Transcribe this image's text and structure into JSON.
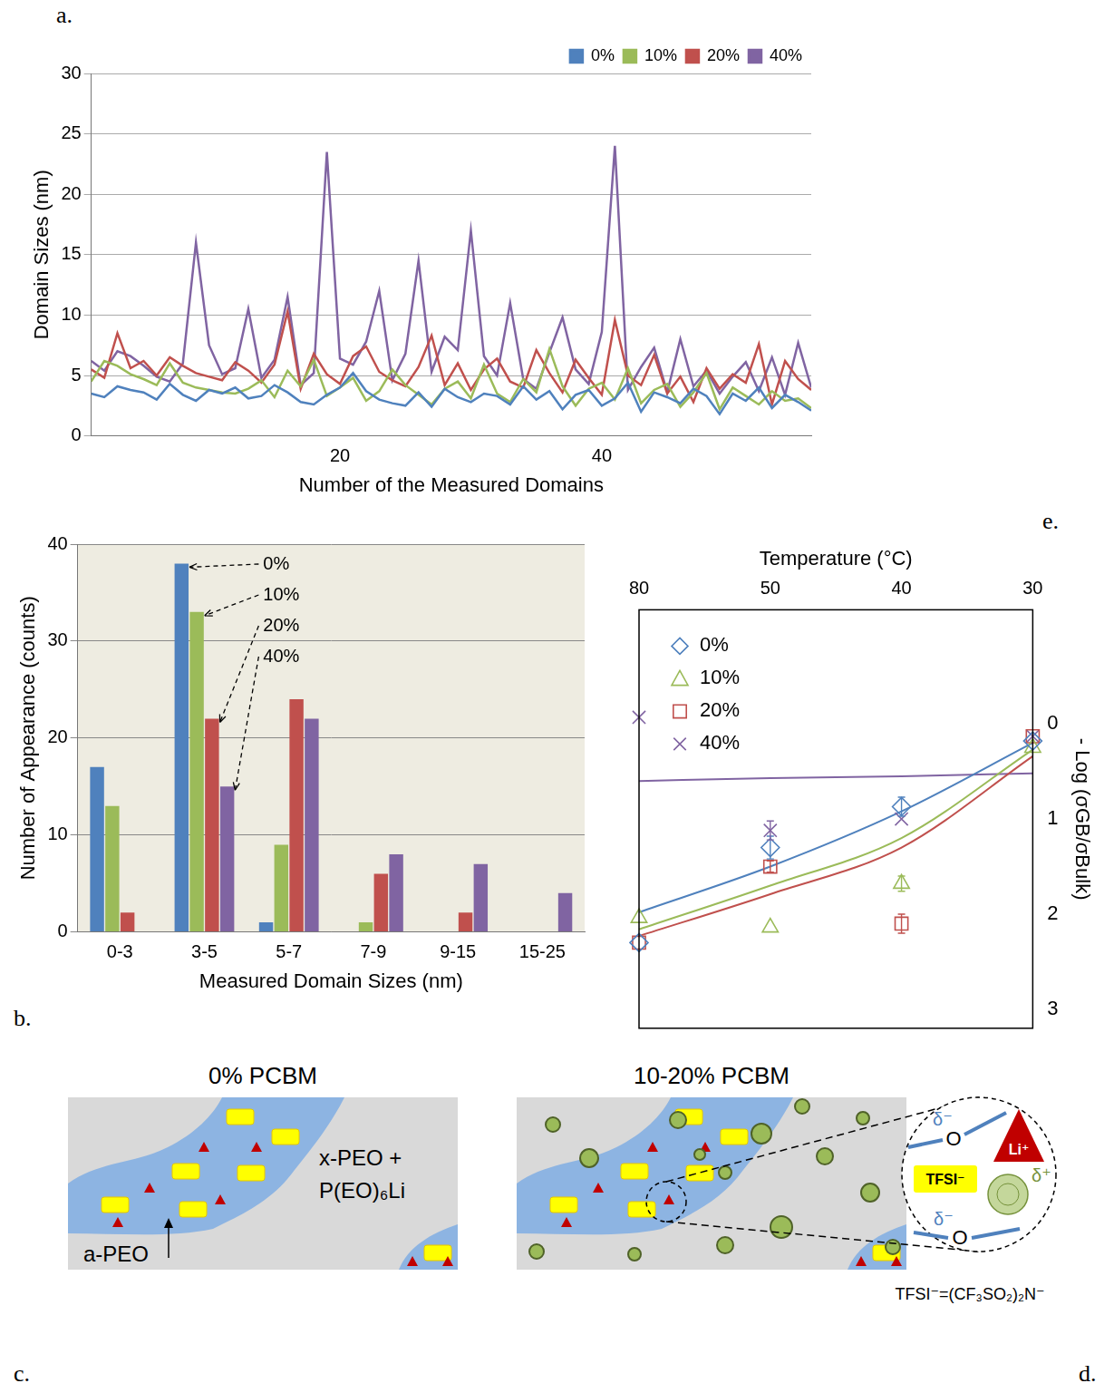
{
  "chart_data": [
    {
      "panel": "a.",
      "type": "line",
      "x_label": "Number of the Measured Domains",
      "y_label": "Domain Sizes (nm)",
      "x": [
        1,
        2,
        3,
        4,
        5,
        6,
        7,
        8,
        9,
        10,
        11,
        12,
        13,
        14,
        15,
        16,
        17,
        18,
        19,
        20,
        21,
        22,
        23,
        24,
        25,
        26,
        27,
        28,
        29,
        30,
        31,
        32,
        33,
        34,
        35,
        36,
        37,
        38,
        39,
        40,
        41,
        42,
        43,
        44,
        45,
        46,
        47,
        48,
        49,
        50,
        51,
        52,
        53,
        54,
        55,
        56
      ],
      "xlim": [
        1,
        56
      ],
      "xticks": [
        20,
        40
      ],
      "ylim": [
        0,
        30
      ],
      "yticks": [
        0,
        5,
        10,
        15,
        20,
        25,
        30
      ],
      "grid": true,
      "legend": "upper right",
      "series": [
        {
          "name": "0%",
          "color": "#4f81bd",
          "values": [
            3.5,
            3.2,
            4.1,
            3.8,
            3.6,
            3.0,
            4.3,
            3.4,
            2.9,
            3.8,
            3.5,
            4.0,
            3.1,
            3.3,
            4.2,
            3.6,
            2.8,
            2.6,
            3.4,
            4.0,
            5.2,
            3.7,
            3.0,
            2.7,
            2.5,
            3.6,
            2.4,
            3.9,
            3.2,
            2.8,
            3.5,
            3.3,
            2.6,
            4.1,
            3.0,
            3.7,
            2.2,
            3.4,
            3.8,
            2.5,
            3.1,
            4.4,
            2.0,
            3.6,
            3.2,
            2.7,
            3.9,
            3.3,
            1.8,
            3.5,
            2.9,
            4.0,
            2.3,
            3.4,
            2.8,
            2.1
          ]
        },
        {
          "name": "10%",
          "color": "#9bbb59",
          "values": [
            4.5,
            6.2,
            5.8,
            5.1,
            4.7,
            4.2,
            6.0,
            4.4,
            4.0,
            3.8,
            3.6,
            3.5,
            3.9,
            4.6,
            3.2,
            5.4,
            4.1,
            6.3,
            3.3,
            4.0,
            4.8,
            2.9,
            3.7,
            5.5,
            4.2,
            3.4,
            2.6,
            3.9,
            4.5,
            3.1,
            5.9,
            3.5,
            2.8,
            4.7,
            3.6,
            7.2,
            4.1,
            2.5,
            3.9,
            4.4,
            3.0,
            5.6,
            2.7,
            3.8,
            4.3,
            2.4,
            3.6,
            5.2,
            2.2,
            4.0,
            3.3,
            2.6,
            3.7,
            2.9,
            3.1,
            2.3
          ]
        },
        {
          "name": "20%",
          "color": "#c0504d",
          "values": [
            5.5,
            4.8,
            8.5,
            5.6,
            6.2,
            5.0,
            6.5,
            5.8,
            5.2,
            4.9,
            4.6,
            6.1,
            5.4,
            4.4,
            5.9,
            10.3,
            3.9,
            6.8,
            5.1,
            4.3,
            6.6,
            7.4,
            5.3,
            4.6,
            4.1,
            5.7,
            8.3,
            4.2,
            6.0,
            3.8,
            5.5,
            6.4,
            4.5,
            4.0,
            7.1,
            5.2,
            3.6,
            6.3,
            4.8,
            3.4,
            9.6,
            5.0,
            4.2,
            6.7,
            3.5,
            4.9,
            2.8,
            5.6,
            3.9,
            5.1,
            4.4,
            7.6,
            2.6,
            6.2,
            4.7,
            3.8
          ]
        },
        {
          "name": "40%",
          "color": "#8064a2",
          "values": [
            6.2,
            5.4,
            7.0,
            6.6,
            5.8,
            4.9,
            4.5,
            6.0,
            16.0,
            7.5,
            5.1,
            5.6,
            10.5,
            4.8,
            6.3,
            11.5,
            4.2,
            5.2,
            23.5,
            6.4,
            5.9,
            7.8,
            12.0,
            4.6,
            6.8,
            14.5,
            5.3,
            8.2,
            7.1,
            17.0,
            6.6,
            5.0,
            11.0,
            4.7,
            3.9,
            6.9,
            9.8,
            5.5,
            4.3,
            8.6,
            24.0,
            3.8,
            5.7,
            7.3,
            3.6,
            8.0,
            4.1,
            5.4,
            3.5,
            4.9,
            6.1,
            3.7,
            6.5,
            3.4,
            7.7,
            4.0
          ]
        }
      ]
    },
    {
      "panel": "b.",
      "type": "bar",
      "x_label": "Measured Domain Sizes (nm)",
      "y_label": "Number of Appearance (counts)",
      "categories": [
        "0-3",
        "3-5",
        "5-7",
        "7-9",
        "9-15",
        "15-25"
      ],
      "ylim": [
        0,
        40
      ],
      "yticks": [
        0,
        10,
        20,
        30,
        40
      ],
      "grid": true,
      "series": [
        {
          "name": "0%",
          "color": "#4f81bd",
          "values": [
            17,
            38,
            1,
            0,
            0,
            0
          ]
        },
        {
          "name": "10%",
          "color": "#9bbb59",
          "values": [
            13,
            33,
            9,
            1,
            0,
            0
          ]
        },
        {
          "name": "20%",
          "color": "#c0504d",
          "values": [
            2,
            22,
            24,
            6,
            2,
            0
          ]
        },
        {
          "name": "40%",
          "color": "#8064a2",
          "values": [
            0,
            15,
            22,
            8,
            7,
            4
          ]
        }
      ],
      "annotations": [
        {
          "text": "0%",
          "category": "3-5"
        },
        {
          "text": "10%",
          "category": "3-5"
        },
        {
          "text": "20%",
          "category": "3-5"
        },
        {
          "text": "40%",
          "category": "3-5"
        }
      ]
    },
    {
      "panel": "e.",
      "type": "scatter",
      "x_label": "Temperature (°C)",
      "y_label": "- Log (σGB/σBulk)",
      "categories": [
        "80",
        "50",
        "40",
        "30"
      ],
      "ylim": [
        -1.2,
        3.2
      ],
      "yticks": [
        0,
        1,
        2,
        3
      ],
      "legend": "upper left",
      "series": [
        {
          "name": "0%",
          "color": "#4f81bd",
          "marker": "diamond",
          "values": [
            2.3,
            1.3,
            0.87,
            0.18
          ],
          "errors": [
            null,
            0.12,
            0.1,
            null
          ],
          "fit": [
            1.98,
            1.5,
            0.92,
            0.2
          ]
        },
        {
          "name": "10%",
          "color": "#9bbb59",
          "marker": "triangle",
          "values": [
            2.04,
            2.14,
            1.68,
            0.25
          ],
          "errors": [
            null,
            null,
            0.08,
            null
          ],
          "fit": [
            2.16,
            1.7,
            1.2,
            0.27
          ]
        },
        {
          "name": "20%",
          "color": "#c0504d",
          "marker": "square",
          "values": [
            2.3,
            1.5,
            2.1,
            0.13
          ],
          "errors": [
            null,
            0.06,
            0.1,
            null
          ],
          "fit": [
            2.23,
            1.79,
            1.3,
            0.34
          ]
        },
        {
          "name": "40%",
          "color": "#8064a2",
          "marker": "x",
          "values": [
            -0.07,
            1.12,
            1.0,
            0.13
          ],
          "errors": [
            null,
            0.1,
            null,
            null
          ],
          "fit": [
            0.6,
            0.57,
            0.55,
            0.52
          ]
        }
      ]
    }
  ],
  "diagrams": [
    {
      "panel": "c.",
      "title": "0% PCBM",
      "matrix_label": [
        "x-PEO +",
        "P(EO)₆Li"
      ],
      "domain_label": "a-PEO"
    },
    {
      "panel": "d.",
      "title": "10-20% PCBM",
      "inset": {
        "oxygen": "O",
        "oxygen_charge": "δ⁻",
        "cation": "Li⁺",
        "anion": "TFSI⁻",
        "fullerene_charge": "δ⁺"
      },
      "footnote": "TFSI⁻=(CF₃SO₂)₂N⁻"
    }
  ]
}
